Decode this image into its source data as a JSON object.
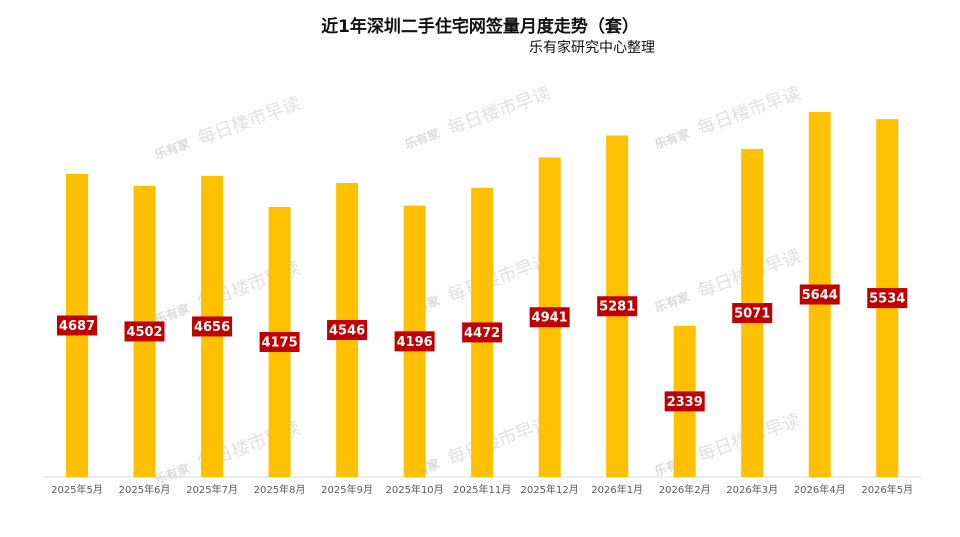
{
  "chart_data": {
    "type": "bar",
    "title": "近1年深圳二手住宅网签量月度走势（套）",
    "subtitle": "乐有家研究中心整理",
    "watermark_logo": "乐有家",
    "watermark": "每日楼市早读",
    "categories": [
      "2025年5月",
      "2025年6月",
      "2025年7月",
      "2025年8月",
      "2025年9月",
      "2025年10月",
      "2025年11月",
      "2025年12月",
      "2026年1月",
      "2026年2月",
      "2026年3月",
      "2026年4月",
      "2026年5月"
    ],
    "values": [
      4687,
      4502,
      4656,
      4175,
      4546,
      4196,
      4472,
      4941,
      5281,
      2339,
      5071,
      5644,
      5534
    ],
    "color": "#FFC000",
    "label_color": "#C00000",
    "ylim": [
      0,
      6000
    ]
  }
}
